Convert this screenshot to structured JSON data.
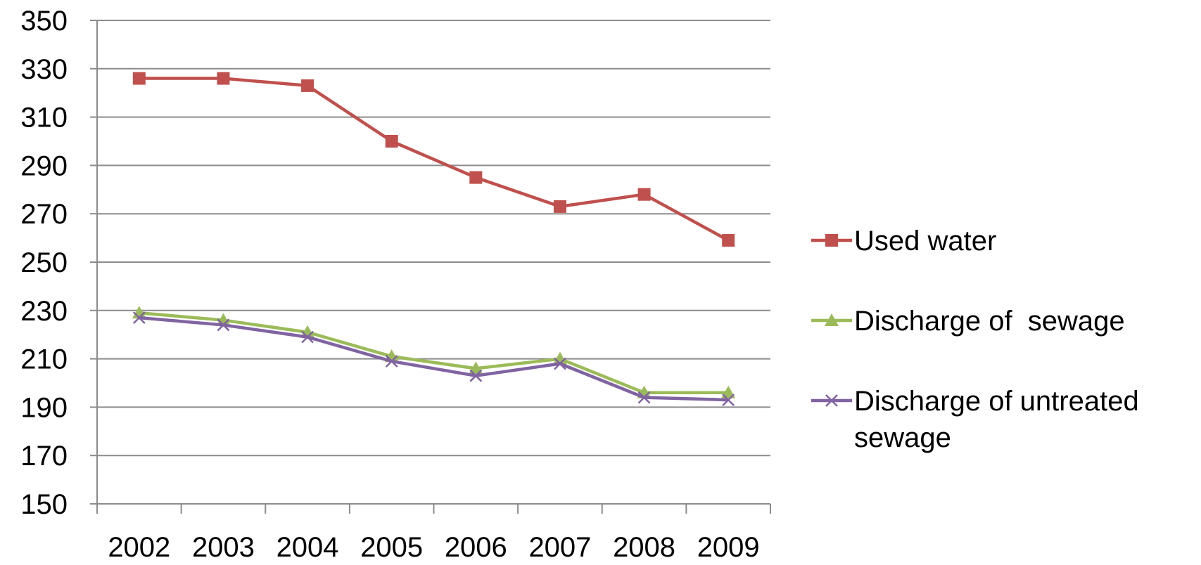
{
  "chart_data": {
    "type": "line",
    "title": "",
    "xlabel": "",
    "ylabel": "",
    "categories": [
      "2002",
      "2003",
      "2004",
      "2005",
      "2006",
      "2007",
      "2008",
      "2009"
    ],
    "ylim": [
      150,
      350
    ],
    "yticks": [
      150,
      170,
      190,
      210,
      230,
      250,
      270,
      290,
      310,
      330,
      350
    ],
    "grid": true,
    "legend_position": "right",
    "series": [
      {
        "name": "Used water",
        "values": [
          326,
          326,
          323,
          300,
          285,
          273,
          278,
          259
        ],
        "color": "#c0504d",
        "marker": "square"
      },
      {
        "name": "Discharge of  sewage",
        "values": [
          229,
          226,
          221,
          211,
          206,
          210,
          196,
          196
        ],
        "color": "#9bbb59",
        "marker": "triangle"
      },
      {
        "name": "Discharge of untreated sewage",
        "name_lines": [
          "Discharge of untreated",
          "sewage"
        ],
        "values": [
          227,
          224,
          219,
          209,
          203,
          208,
          194,
          193
        ],
        "color": "#8064a2",
        "marker": "x"
      }
    ]
  }
}
